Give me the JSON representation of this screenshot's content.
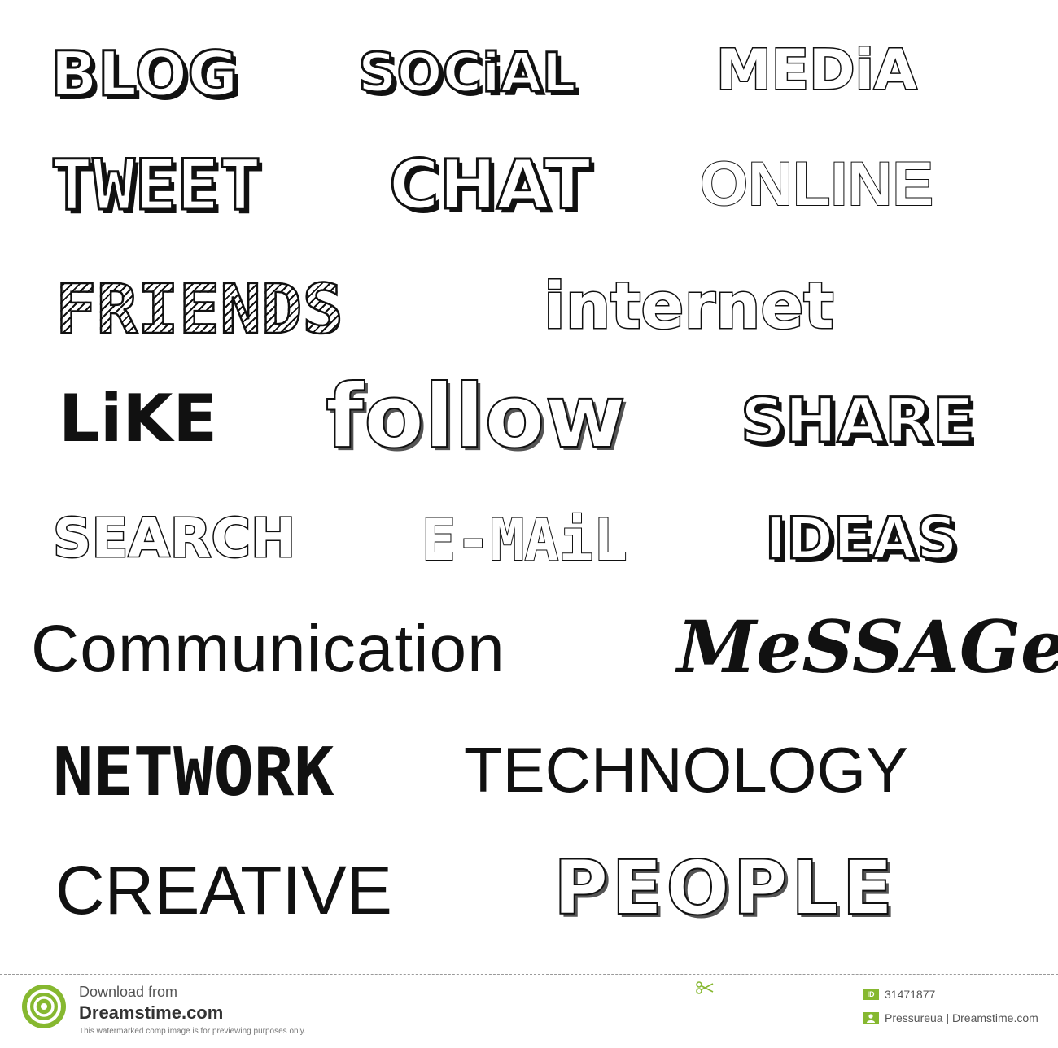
{
  "rows": [
    [
      "BLOG",
      "SOCiAL",
      "MEDiA"
    ],
    [
      "TWEET",
      "CHAT",
      "ONLINE"
    ],
    [
      "FRIENDS",
      "internet"
    ],
    [
      "LiKE",
      "follow",
      "SHARE"
    ],
    [
      "SEARCH",
      "E-MAiL",
      "IDEAS"
    ],
    [
      "Communication",
      "MeSSAGe"
    ],
    [
      "NETWORK",
      "TECHNOLOGY"
    ],
    [
      "CREATIVE",
      "PEOPLE"
    ]
  ],
  "footer": {
    "download_from": "Download from",
    "site": "Dreamstime.com",
    "note": "This watermarked comp image is for previewing purposes only.",
    "id_label": "ID",
    "id_number": "31471877",
    "author": "Pressureua | Dreamstime.com"
  },
  "colors": {
    "ink": "#111111",
    "brand_green": "#86b830"
  },
  "icons": {
    "logo": "dreamstime-logo-icon",
    "scissor": "scissor-icon",
    "user": "user-icon"
  }
}
